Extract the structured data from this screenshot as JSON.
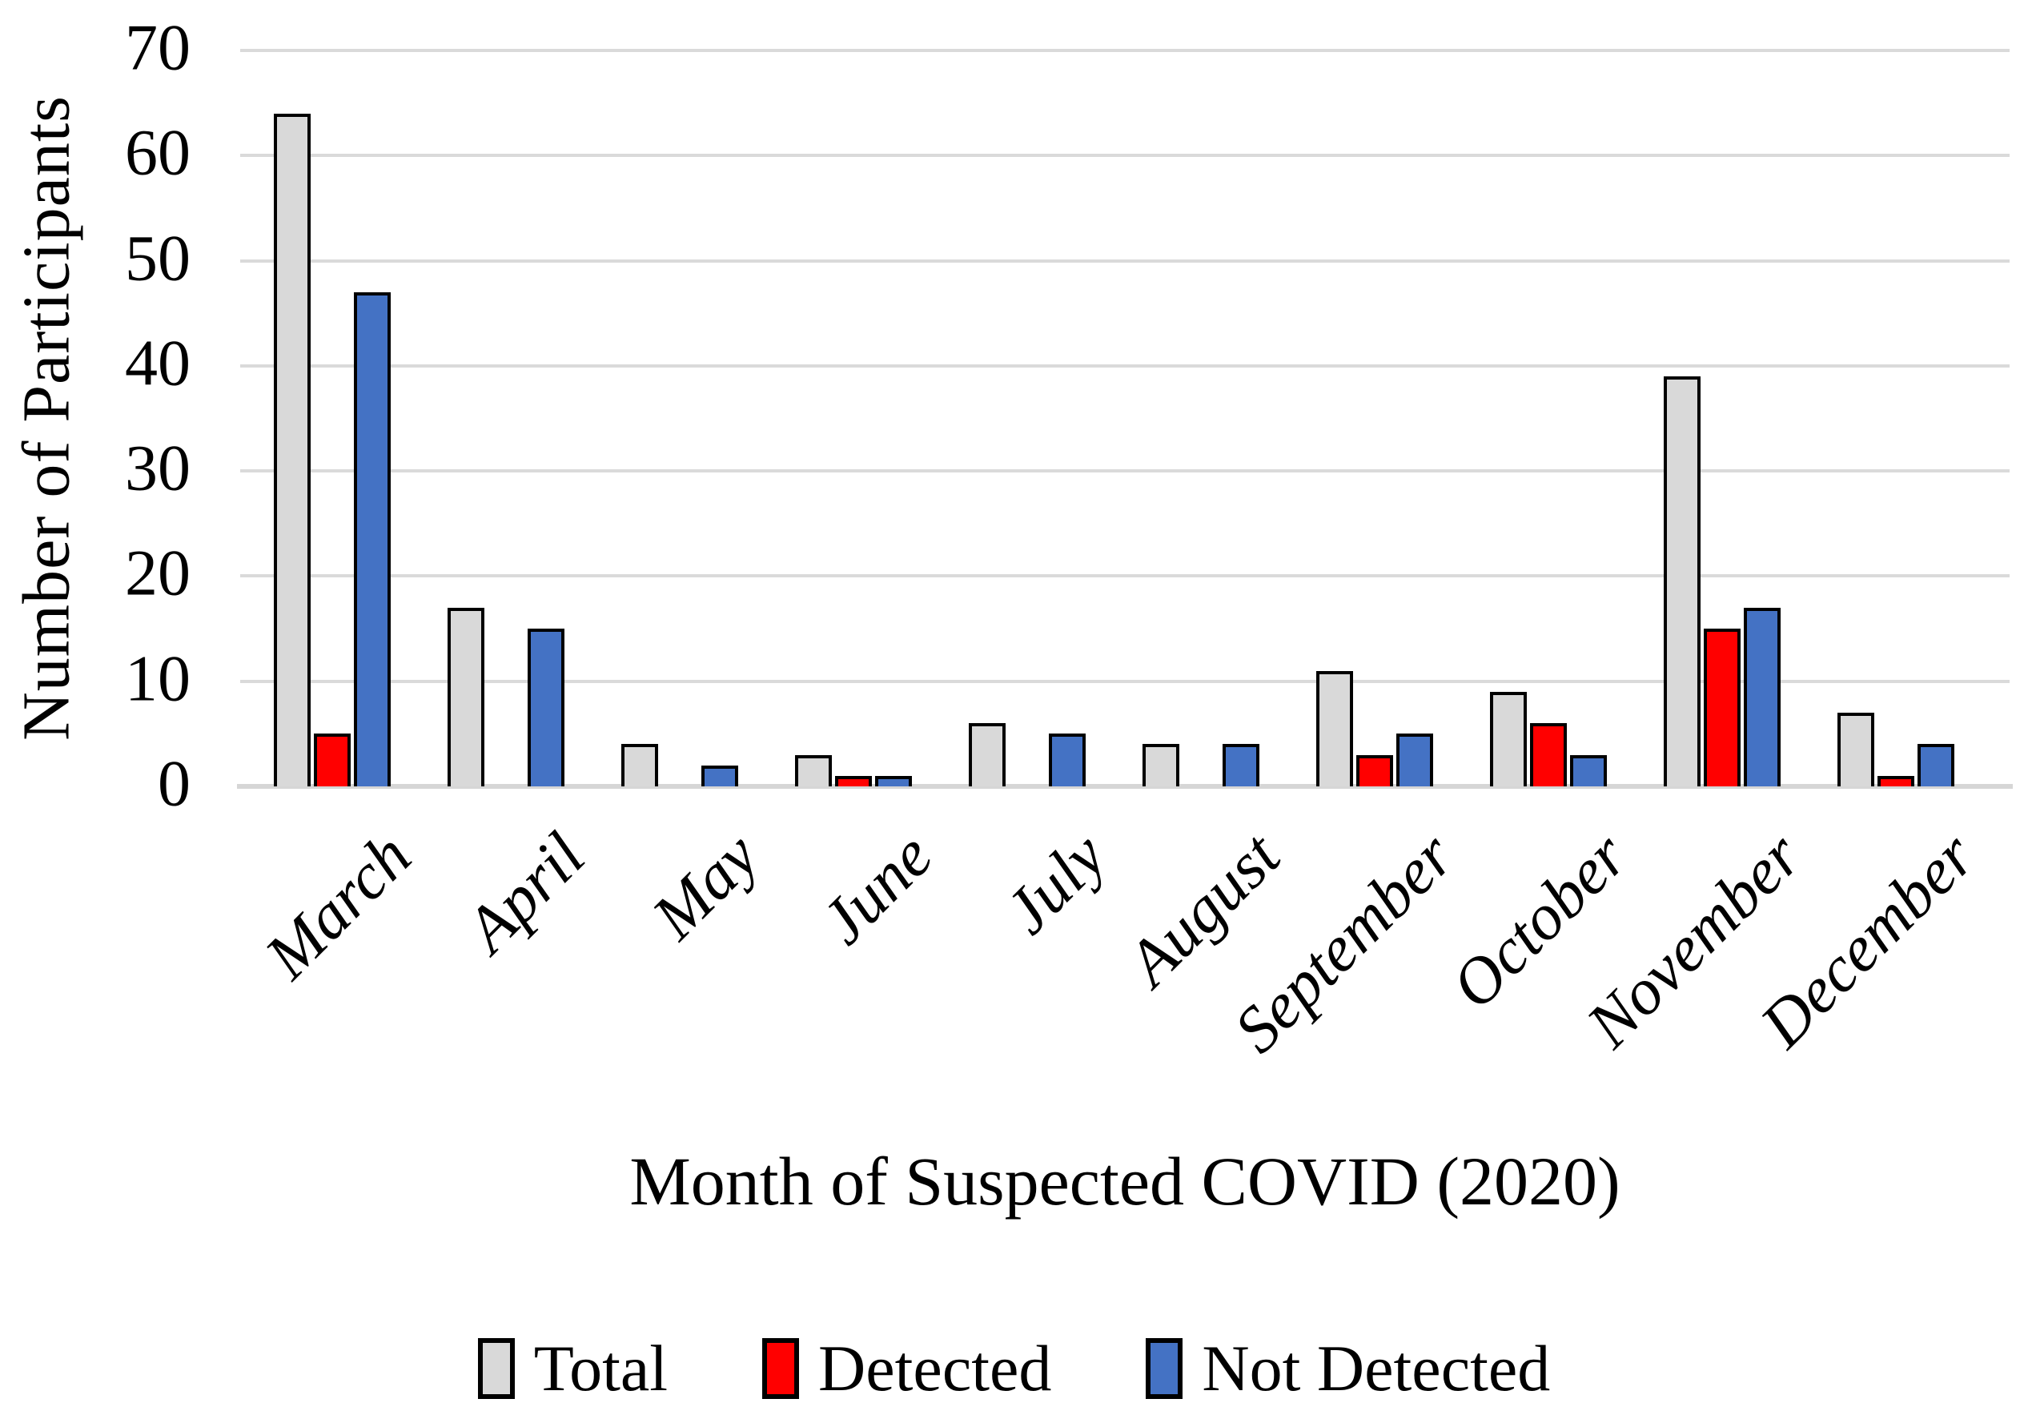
{
  "chart_data": {
    "type": "bar",
    "title": "",
    "xlabel": "Month of Suspected COVID (2020)",
    "ylabel": "Number of Participants",
    "categories": [
      "March",
      "April",
      "May",
      "June",
      "July",
      "August",
      "September",
      "October",
      "November",
      "December"
    ],
    "series": [
      {
        "name": "Total",
        "color": "#D9D9D9",
        "values": [
          64,
          17,
          4,
          3,
          6,
          4,
          11,
          9,
          39,
          7
        ]
      },
      {
        "name": "Detected",
        "color": "#FF0000",
        "values": [
          5,
          0,
          0,
          1,
          0,
          0,
          3,
          6,
          15,
          1
        ]
      },
      {
        "name": "Not Detected",
        "color": "#4472C4",
        "values": [
          47,
          15,
          2,
          1,
          5,
          4,
          5,
          3,
          17,
          4
        ]
      }
    ],
    "ylim": [
      0,
      70
    ],
    "yticks": [
      0,
      10,
      20,
      30,
      40,
      50,
      60,
      70
    ],
    "grid": true,
    "legend_position": "bottom",
    "bar_outline_color": "#000000",
    "gridline_color": "#DADADA",
    "axis_line_color": "#D6D6D6"
  }
}
